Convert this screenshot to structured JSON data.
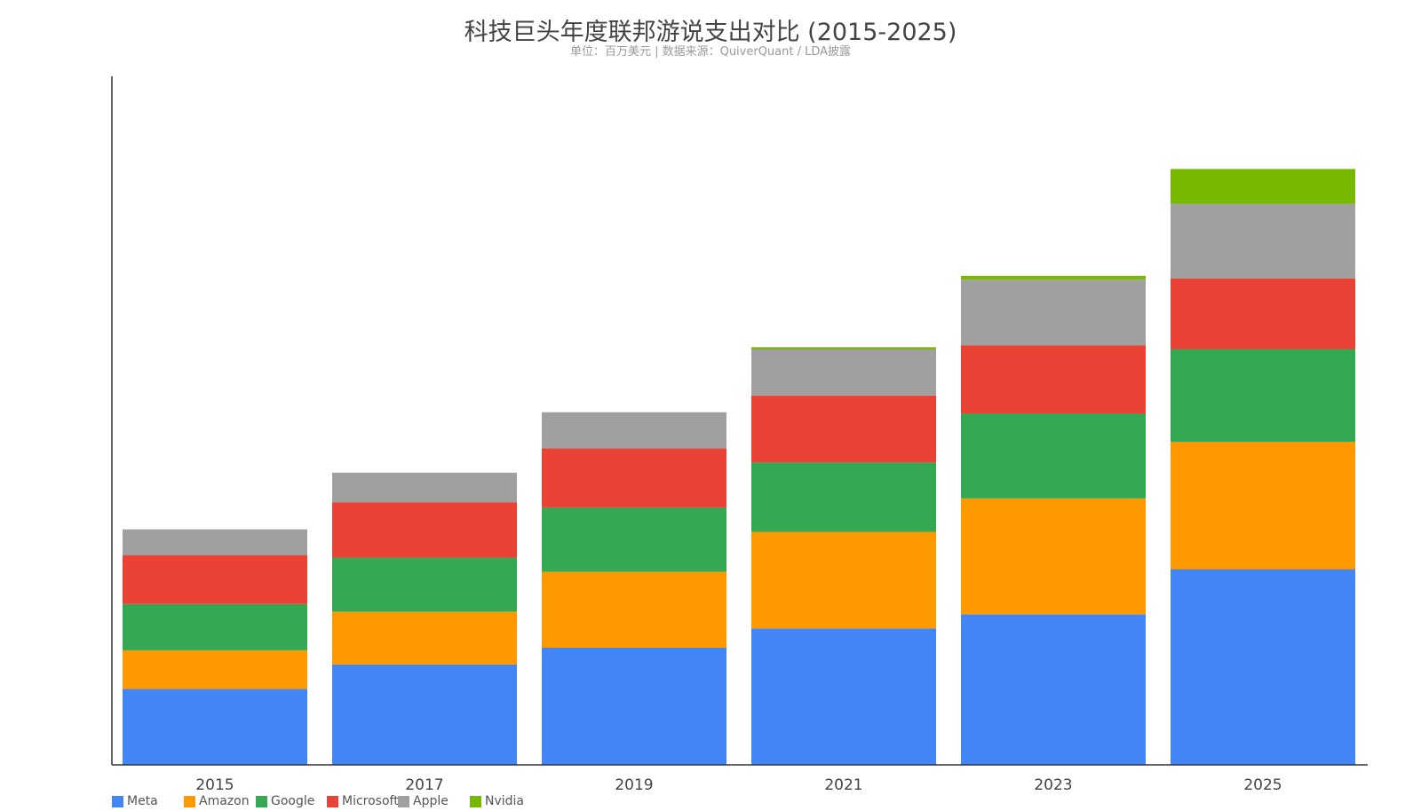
{
  "chart_data": {
    "type": "bar",
    "stacked": true,
    "title": "科技巨头年度联邦游说支出对比 (2015-2025)",
    "subtitle": "单位：百万美元 | 数据来源：QuiverQuant / LDA披露",
    "categories": [
      "2015",
      "2017",
      "2019",
      "2021",
      "2023",
      "2025"
    ],
    "series": [
      {
        "name": "Meta",
        "color": "#4285F4",
        "values": [
          5.9,
          7.8,
          9.1,
          10.6,
          11.7,
          15.2
        ]
      },
      {
        "name": "Amazon",
        "color": "#FF9900",
        "values": [
          3.0,
          4.1,
          5.9,
          7.5,
          9.0,
          9.9
        ]
      },
      {
        "name": "Google",
        "color": "#34A853",
        "values": [
          3.6,
          4.2,
          5.0,
          5.4,
          6.6,
          7.2
        ]
      },
      {
        "name": "Microsoft",
        "color": "#EA4335",
        "values": [
          3.8,
          4.3,
          4.6,
          5.2,
          5.3,
          5.5
        ]
      },
      {
        "name": "Apple",
        "color": "#A0A0A0",
        "values": [
          2.0,
          2.3,
          2.8,
          3.6,
          5.1,
          5.8
        ]
      },
      {
        "name": "Nvidia",
        "color": "#76B900",
        "values": [
          0,
          0,
          0,
          0.15,
          0.3,
          2.7
        ]
      }
    ],
    "ylim": [
      0,
      53.5
    ],
    "grid": false,
    "legend_position": "bottom-left"
  }
}
